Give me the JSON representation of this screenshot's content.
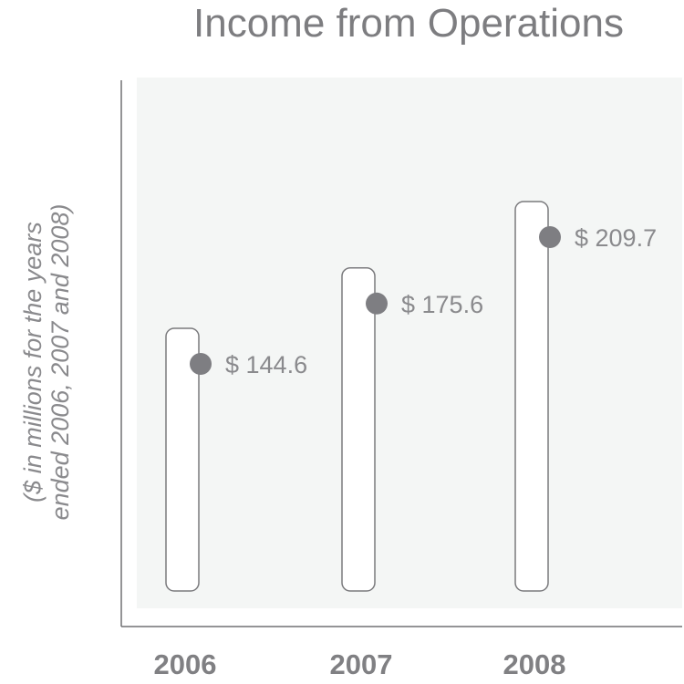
{
  "colors": {
    "plot_background": "#f4f6f5",
    "axis": "#707073",
    "bar_outline": "#7a7a7d",
    "marker": "#7e7e82",
    "text": "#808083"
  },
  "chart_data": {
    "type": "bar",
    "title": "Income from Operations",
    "ylabel_lines": [
      "($ in millions for the years",
      "ended 2006, 2007 and 2008)"
    ],
    "xlabel": "",
    "categories": [
      "2006",
      "2007",
      "2008"
    ],
    "values": [
      144.6,
      175.6,
      209.7
    ],
    "value_labels": [
      "$ 144.6",
      "$ 175.6",
      "$ 209.7"
    ],
    "marker": "filled-circle",
    "grid": false
  }
}
